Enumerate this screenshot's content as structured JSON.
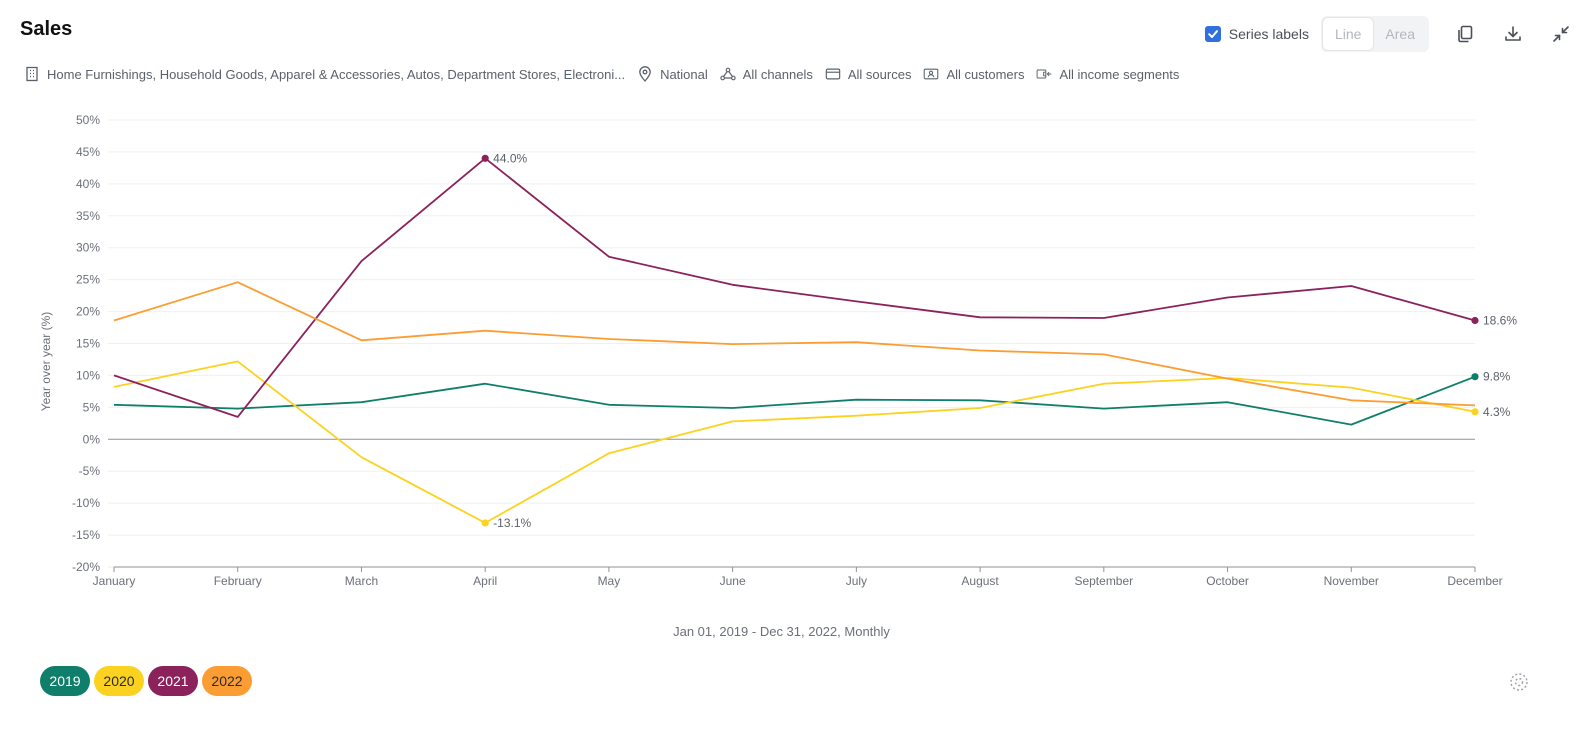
{
  "page": {
    "title": "Sales"
  },
  "toolbar": {
    "series_labels": "Series labels",
    "series_labels_checked": true,
    "line": "Line",
    "area": "Area"
  },
  "filters": [
    {
      "icon": "building-icon",
      "text": "Home Furnishings, Household Goods, Apparel & Accessories, Autos, Department Stores, Electroni..."
    },
    {
      "icon": "location-pin-icon",
      "text": "National"
    },
    {
      "icon": "channels-network-icon",
      "text": "All channels"
    },
    {
      "icon": "card-icon",
      "text": "All sources"
    },
    {
      "icon": "customer-id-icon",
      "text": "All customers"
    },
    {
      "icon": "income-wallet-icon",
      "text": "All income segments"
    }
  ],
  "date_range": "Jan 01, 2019 - Dec 31, 2022, Monthly",
  "legend": [
    {
      "label": "2019",
      "color": "#0f7f6b",
      "text_color": "#ffffff"
    },
    {
      "label": "2020",
      "color": "#fbd21f",
      "text_color": "#2b2b2b"
    },
    {
      "label": "2021",
      "color": "#8b225b",
      "text_color": "#ffffff"
    },
    {
      "label": "2022",
      "color": "#fb9d32",
      "text_color": "#2b2b2b"
    }
  ],
  "chart_data": {
    "type": "line",
    "ylabel": "Year over year (%)",
    "xlabel": "",
    "ylim": [
      -20,
      50
    ],
    "yticks": [
      50,
      45,
      40,
      35,
      30,
      25,
      20,
      15,
      10,
      5,
      0,
      -5,
      -10,
      -15,
      -20
    ],
    "ytick_labels": [
      "50%",
      "45%",
      "40%",
      "35%",
      "30%",
      "25%",
      "20%",
      "15%",
      "10%",
      "5%",
      "0%",
      "-5%",
      "-10%",
      "-15%",
      "-20%"
    ],
    "categories": [
      "January",
      "February",
      "March",
      "April",
      "May",
      "June",
      "July",
      "August",
      "September",
      "October",
      "November",
      "December"
    ],
    "grid": true,
    "series": [
      {
        "name": "2019",
        "color": "#0f7f6b",
        "values": [
          5.4,
          4.8,
          5.8,
          8.7,
          5.4,
          4.9,
          6.2,
          6.1,
          4.8,
          5.8,
          2.3,
          9.8
        ]
      },
      {
        "name": "2020",
        "color": "#fbd21f",
        "values": [
          8.2,
          12.2,
          -2.8,
          -13.1,
          -2.2,
          2.8,
          3.7,
          4.9,
          8.7,
          9.6,
          8.1,
          4.3
        ]
      },
      {
        "name": "2021",
        "color": "#8b225b",
        "values": [
          10.0,
          3.5,
          27.9,
          44.0,
          28.6,
          24.2,
          21.6,
          19.1,
          19.0,
          22.2,
          24.0,
          18.6
        ]
      },
      {
        "name": "2022",
        "color": "#fb9d32",
        "values": [
          18.6,
          24.6,
          15.5,
          17.0,
          15.7,
          14.9,
          15.2,
          13.9,
          13.3,
          9.5,
          6.1,
          5.3
        ]
      }
    ],
    "data_labels": [
      {
        "series": "2021",
        "index": 3,
        "text": "44.0%"
      },
      {
        "series": "2020",
        "index": 3,
        "text": "-13.1%"
      },
      {
        "series": "2021",
        "index": 11,
        "text": "18.6%"
      },
      {
        "series": "2019",
        "index": 11,
        "text": "9.8%"
      },
      {
        "series": "2020",
        "index": 11,
        "text": "4.3%"
      }
    ]
  }
}
